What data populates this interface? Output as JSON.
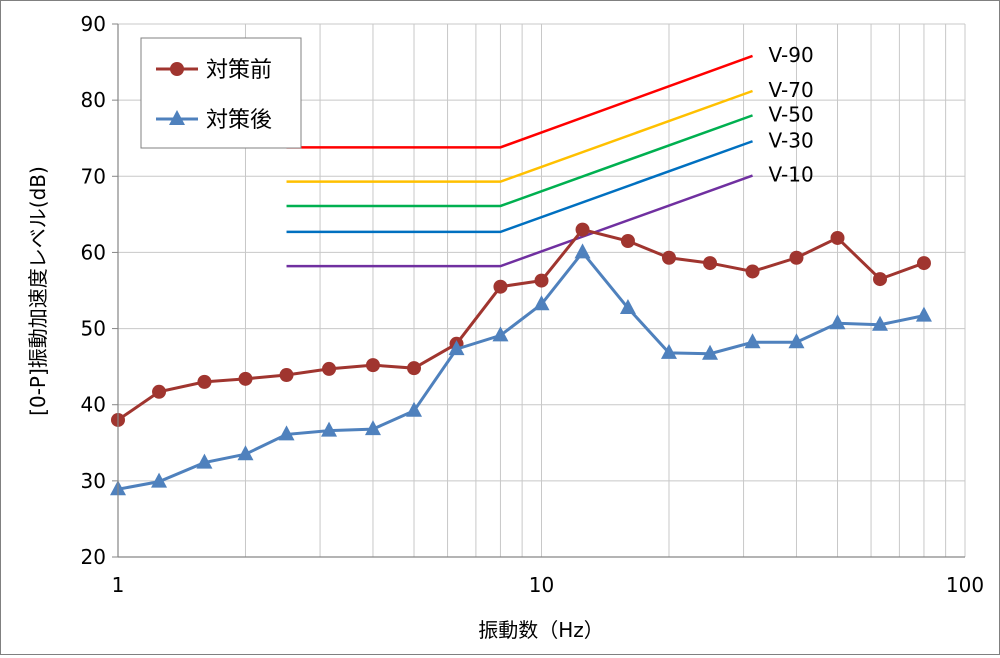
{
  "chart_data": {
    "type": "line",
    "xscale": "log",
    "xlim": [
      1,
      100
    ],
    "ylim": [
      20,
      90
    ],
    "yticks": [
      20,
      30,
      40,
      50,
      60,
      70,
      80,
      90
    ],
    "xticks": [
      1,
      10,
      100
    ],
    "xlabel": "振動数（Hz）",
    "ylabel": "[0-P]振動加速度レベル(dB)",
    "grid": true,
    "legend_position": "top-left",
    "series": [
      {
        "name": "対策前",
        "color": "#a0352f",
        "marker": "circle",
        "x": [
          1,
          1.25,
          1.6,
          2,
          2.5,
          3.15,
          4,
          5,
          6.3,
          8,
          10,
          12.5,
          16,
          20,
          25,
          31.5,
          40,
          50,
          63,
          80
        ],
        "y": [
          38.0,
          41.7,
          43.0,
          43.4,
          43.9,
          44.7,
          45.2,
          44.8,
          48.0,
          55.5,
          56.3,
          63.0,
          61.5,
          59.3,
          58.6,
          57.5,
          59.3,
          61.9,
          56.5,
          58.6
        ]
      },
      {
        "name": "対策後",
        "color": "#4f81bd",
        "marker": "triangle",
        "x": [
          1,
          1.25,
          1.6,
          2,
          2.5,
          3.15,
          4,
          5,
          6.3,
          8,
          10,
          12.5,
          16,
          20,
          25,
          31.5,
          40,
          50,
          63,
          80
        ],
        "y": [
          28.9,
          29.9,
          32.4,
          33.5,
          36.1,
          36.6,
          36.8,
          39.2,
          47.3,
          49.1,
          53.2,
          60.0,
          52.7,
          46.8,
          46.7,
          48.2,
          48.2,
          50.7,
          50.5,
          51.7
        ]
      }
    ],
    "reference_lines": [
      {
        "label": "V-90",
        "color": "#ff0000",
        "x": [
          2.5,
          8,
          31.5
        ],
        "y": [
          73.8,
          73.8,
          85.8
        ]
      },
      {
        "label": "V-70",
        "color": "#ffc000",
        "x": [
          2.5,
          8,
          31.5
        ],
        "y": [
          69.3,
          69.3,
          81.2
        ]
      },
      {
        "label": "V-50",
        "color": "#00b050",
        "x": [
          2.5,
          8,
          31.5
        ],
        "y": [
          66.1,
          66.1,
          78.0
        ]
      },
      {
        "label": "V-30",
        "color": "#0070c0",
        "x": [
          2.5,
          8,
          31.5
        ],
        "y": [
          62.7,
          62.7,
          74.6
        ]
      },
      {
        "label": "V-10",
        "color": "#7030a0",
        "x": [
          2.5,
          8,
          31.5
        ],
        "y": [
          58.2,
          58.2,
          70.1
        ]
      }
    ]
  }
}
